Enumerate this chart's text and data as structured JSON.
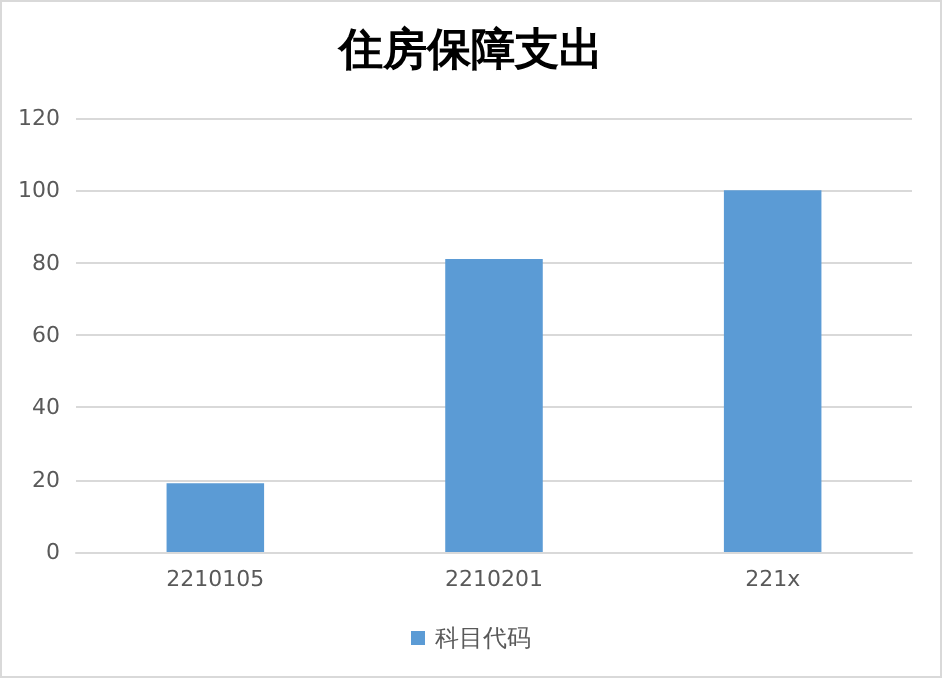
{
  "chart_data": {
    "type": "bar",
    "title": "住房保障支出",
    "categories": [
      "2210105",
      "2210201",
      "221x"
    ],
    "series": [
      {
        "name": "科目代码",
        "color": "#5b9bd5",
        "values": [
          19,
          81,
          100
        ]
      }
    ],
    "ylim": [
      0,
      120
    ],
    "yticks": [
      0,
      20,
      40,
      60,
      80,
      100,
      120
    ],
    "grid": "y",
    "legend": "bottom"
  }
}
